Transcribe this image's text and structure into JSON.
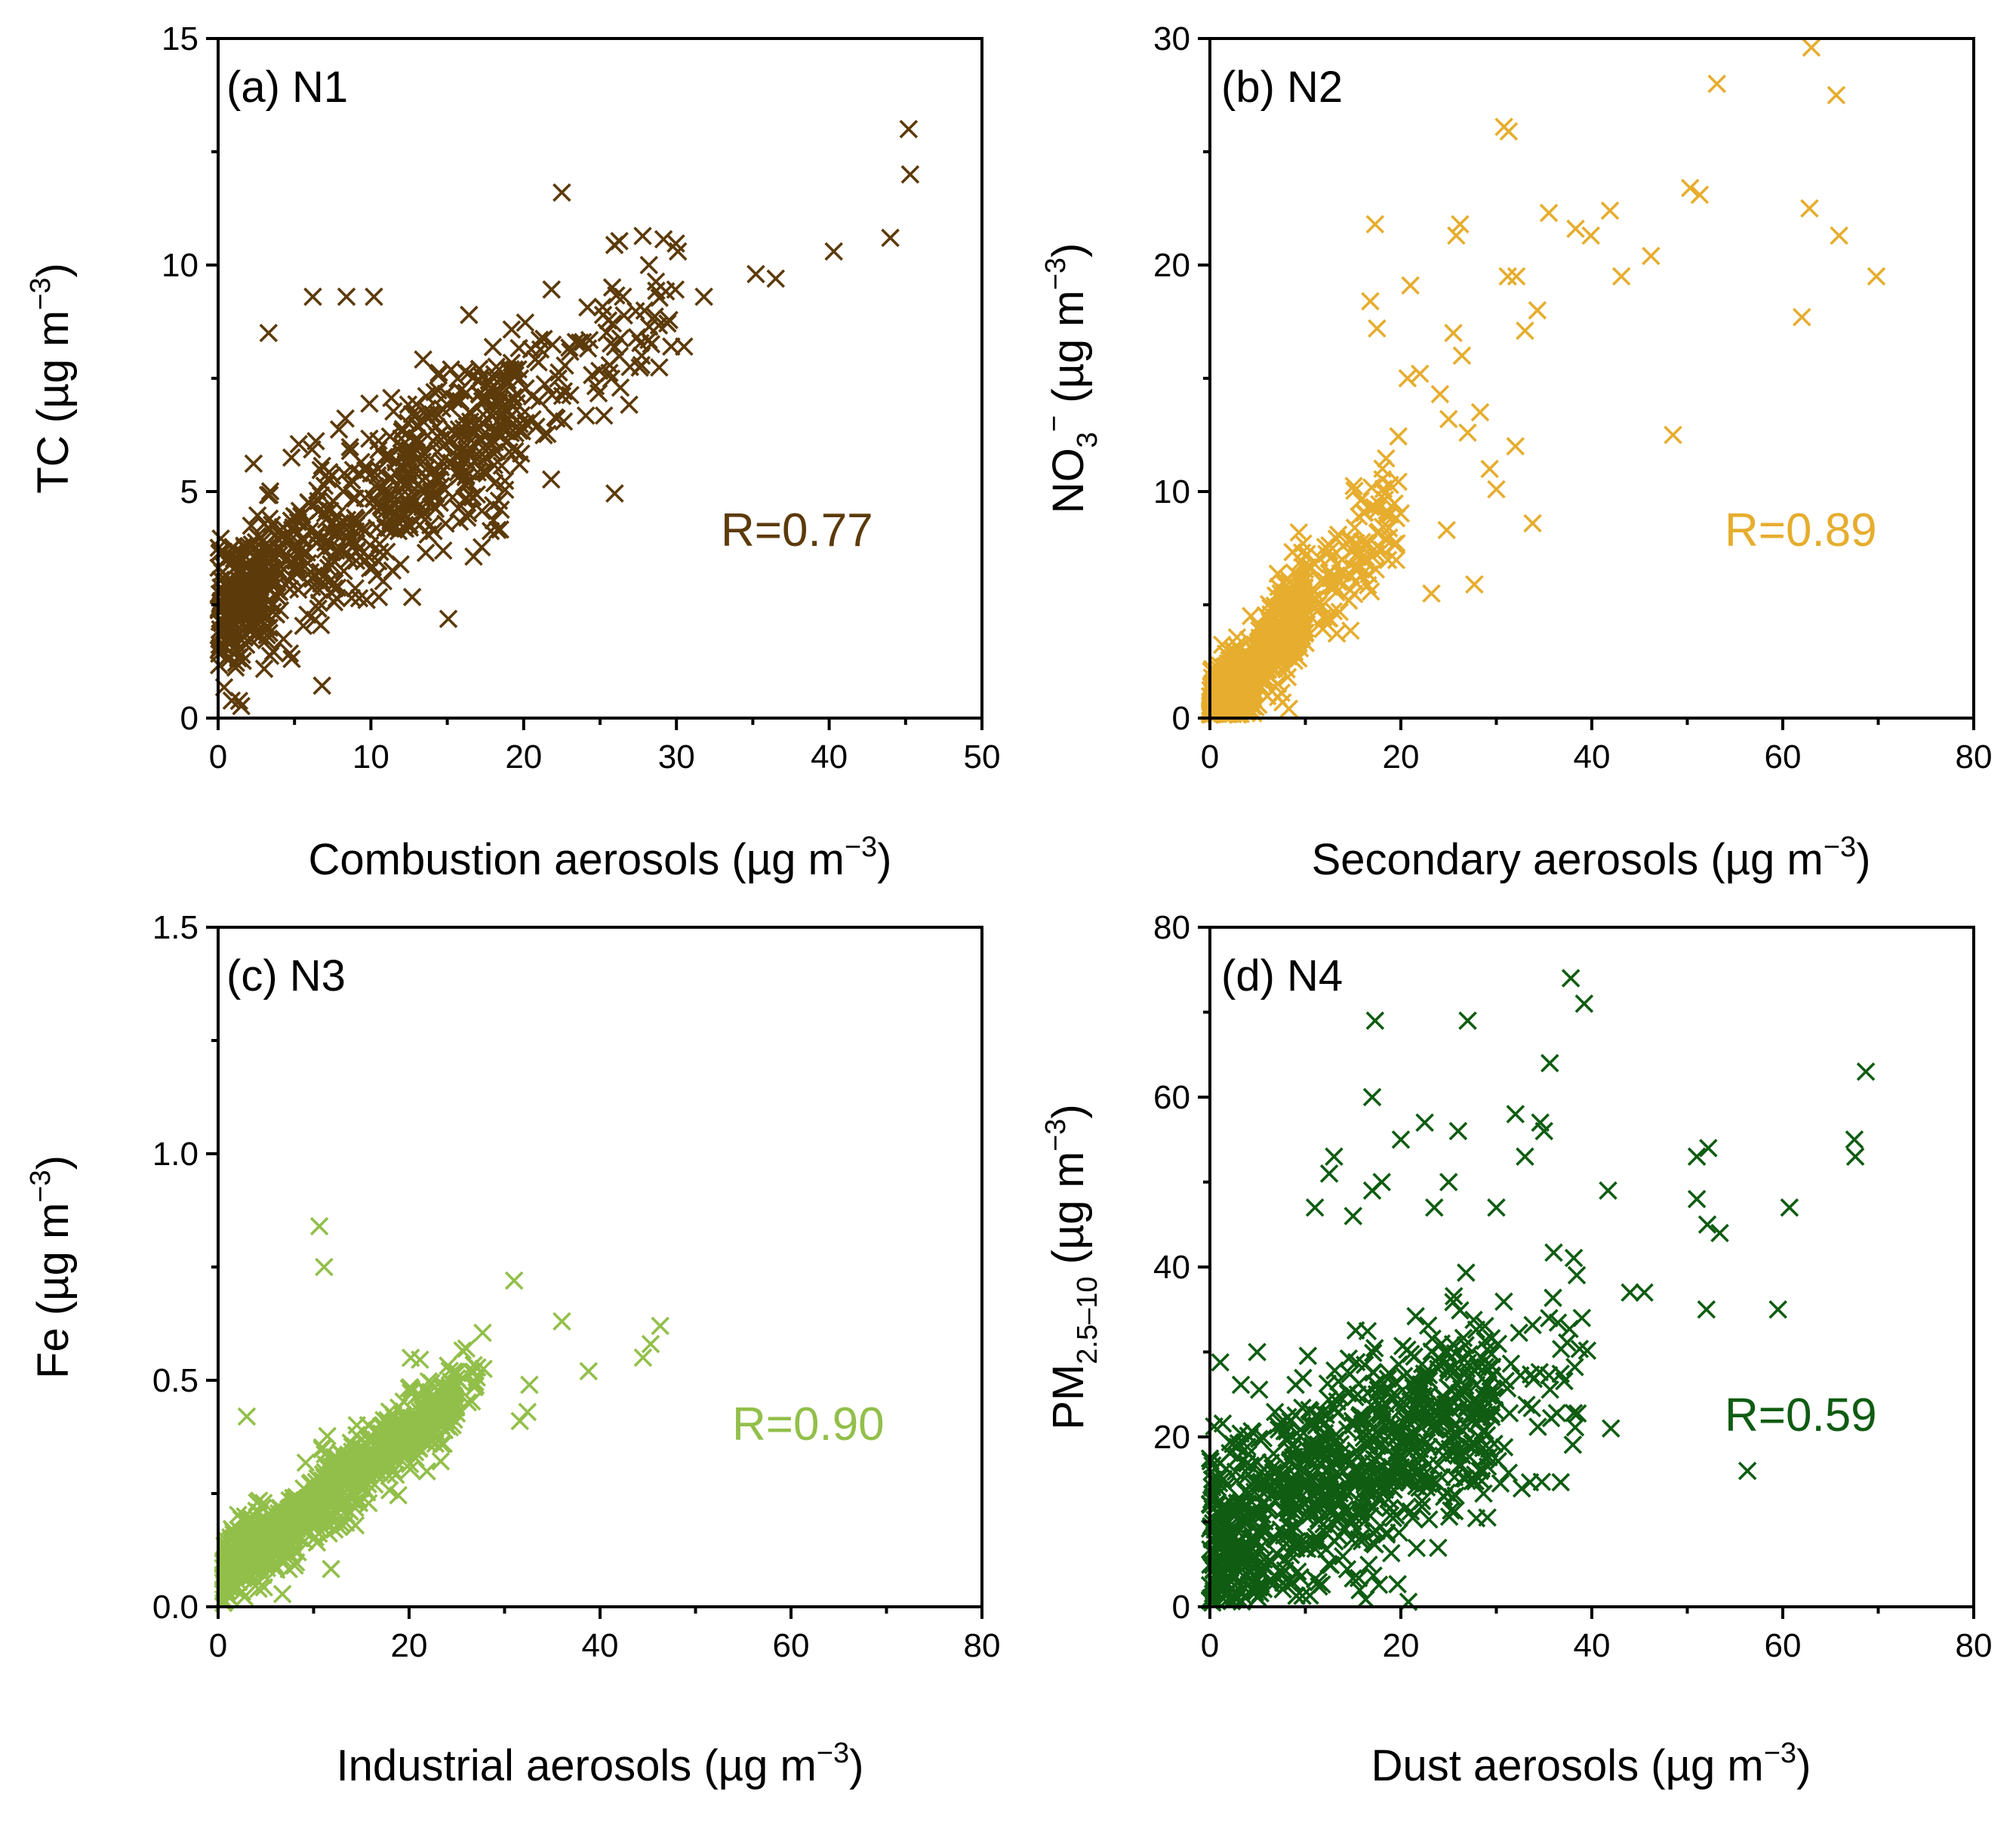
{
  "chart_data": [
    {
      "type": "scatter",
      "panel_label": "(a) N1",
      "xlabel": "Combustion aerosols (µg m",
      "xlabel_exp": "−3",
      "xlabel_end": ")",
      "ylabel": "TC (µg m",
      "ylabel_exp": "−3",
      "ylabel_end": ")",
      "xlim": [
        0,
        50
      ],
      "ylim": [
        0,
        15
      ],
      "xticks": [
        0,
        10,
        20,
        30,
        40,
        50
      ],
      "yticks": [
        0,
        5,
        10,
        15
      ],
      "xtick_labels": [
        "0",
        "10",
        "20",
        "30",
        "40",
        "50"
      ],
      "ytick_labels": [
        "0",
        "5",
        "10",
        "15"
      ],
      "color": "#5c3a0a",
      "r_text": "R=0.77",
      "outliers": [
        [
          45.2,
          13.0
        ],
        [
          45.3,
          12.0
        ],
        [
          44.0,
          10.6
        ],
        [
          40.3,
          10.3
        ],
        [
          36.5,
          9.7
        ],
        [
          35.2,
          9.8
        ],
        [
          31.8,
          9.3
        ],
        [
          30.5,
          8.2
        ],
        [
          30.1,
          10.3
        ],
        [
          28.2,
          10.0
        ],
        [
          22.5,
          11.6
        ],
        [
          18.5,
          4.6
        ],
        [
          3.3,
          8.5
        ],
        [
          6.2,
          9.3
        ],
        [
          8.4,
          9.3
        ],
        [
          10.2,
          9.3
        ],
        [
          26.5,
          9.3
        ],
        [
          25.2,
          8.9
        ]
      ],
      "clusters": [
        {
          "count": 520,
          "x": [
            0,
            20
          ],
          "slope": 0.22,
          "intercept": 2.4,
          "spread": 1.2
        },
        {
          "count": 180,
          "x": [
            12,
            30
          ],
          "slope": 0.22,
          "intercept": 2.6,
          "spread": 1.3
        },
        {
          "count": 140,
          "x": [
            0,
            4
          ],
          "slope": 0.3,
          "intercept": 2.2,
          "spread": 0.8
        }
      ]
    },
    {
      "type": "scatter",
      "panel_label": "(b) N2",
      "xlabel": "Secondary aerosols (µg m",
      "xlabel_exp": "−3",
      "xlabel_end": ")",
      "ylabel": "NO",
      "ylabel_sub": "3",
      "ylabel_sup": "−",
      "ylabel_rest": " (µg m",
      "ylabel_exp": "−3",
      "ylabel_end": ")",
      "xlim": [
        0,
        80
      ],
      "ylim": [
        0,
        30
      ],
      "xticks": [
        0,
        20,
        40,
        60,
        80
      ],
      "yticks": [
        0,
        10,
        20,
        30
      ],
      "xtick_labels": [
        "0",
        "20",
        "40",
        "60",
        "80"
      ],
      "ytick_labels": [
        "0",
        "10",
        "20",
        "30"
      ],
      "color": "#e6ad2e",
      "r_text": "R=0.89",
      "outliers": [
        [
          63.0,
          29.6
        ],
        [
          65.6,
          27.5
        ],
        [
          53.1,
          28.0
        ],
        [
          30.8,
          26.1
        ],
        [
          31.3,
          25.9
        ],
        [
          50.3,
          23.4
        ],
        [
          51.3,
          23.1
        ],
        [
          62.8,
          22.5
        ],
        [
          65.9,
          21.3
        ],
        [
          69.8,
          19.5
        ],
        [
          62.0,
          17.7
        ],
        [
          48.5,
          12.5
        ],
        [
          41.9,
          22.4
        ],
        [
          38.3,
          21.6
        ],
        [
          39.9,
          21.3
        ],
        [
          46.2,
          20.4
        ],
        [
          43.1,
          19.5
        ],
        [
          35.5,
          22.3
        ],
        [
          32.1,
          19.5
        ],
        [
          31.2,
          19.5
        ],
        [
          34.3,
          18.0
        ],
        [
          33.0,
          17.1
        ],
        [
          25.8,
          21.3
        ],
        [
          26.2,
          21.8
        ],
        [
          17.3,
          21.8
        ],
        [
          21.0,
          19.1
        ],
        [
          16.8,
          18.4
        ],
        [
          17.5,
          17.2
        ],
        [
          25.5,
          17.0
        ],
        [
          26.4,
          16.0
        ],
        [
          22.0,
          15.2
        ],
        [
          20.7,
          15.0
        ],
        [
          24.1,
          14.3
        ],
        [
          25.0,
          13.2
        ],
        [
          27.0,
          12.6
        ],
        [
          28.3,
          13.5
        ],
        [
          32.0,
          12.0
        ],
        [
          33.8,
          8.6
        ],
        [
          27.7,
          5.9
        ],
        [
          23.2,
          5.5
        ],
        [
          24.8,
          8.3
        ],
        [
          29.3,
          11.0
        ],
        [
          30.0,
          10.1
        ]
      ],
      "clusters": [
        {
          "count": 620,
          "x": [
            0,
            10
          ],
          "slope": 0.48,
          "intercept": 0.0,
          "spread": 1.2
        },
        {
          "count": 160,
          "x": [
            8,
            20
          ],
          "slope": 0.45,
          "intercept": 0.5,
          "spread": 1.8
        }
      ]
    },
    {
      "type": "scatter",
      "panel_label": "(c) N3",
      "xlabel": "Industrial aerosols (µg m",
      "xlabel_exp": "−3",
      "xlabel_end": ")",
      "ylabel": "Fe (µg m",
      "ylabel_exp": "−3",
      "ylabel_end": ")",
      "xlim": [
        0,
        80
      ],
      "ylim": [
        0,
        1.5
      ],
      "xticks": [
        0,
        20,
        40,
        60,
        80
      ],
      "yticks": [
        0.0,
        0.5,
        1.0,
        1.5
      ],
      "xtick_labels": [
        "0",
        "20",
        "40",
        "60",
        "80"
      ],
      "ytick_labels": [
        "0.0",
        "0.5",
        "1.0",
        "1.5"
      ],
      "color": "#92bf4a",
      "r_text": "R=0.90",
      "outliers": [
        [
          10.6,
          0.84
        ],
        [
          11.1,
          0.75
        ],
        [
          3.0,
          0.42
        ],
        [
          31.0,
          0.72
        ],
        [
          36.0,
          0.63
        ],
        [
          46.3,
          0.62
        ],
        [
          45.3,
          0.58
        ],
        [
          44.5,
          0.55
        ],
        [
          38.8,
          0.52
        ],
        [
          32.6,
          0.49
        ],
        [
          32.4,
          0.43
        ],
        [
          31.6,
          0.41
        ],
        [
          26.0,
          0.57
        ]
      ],
      "clusters": [
        {
          "count": 900,
          "x": [
            0.5,
            25
          ],
          "slope": 0.0155,
          "intercept": 0.07,
          "spread": 0.05
        },
        {
          "count": 120,
          "x": [
            10,
            28
          ],
          "slope": 0.016,
          "intercept": 0.08,
          "spread": 0.06
        }
      ]
    },
    {
      "type": "scatter",
      "panel_label": "(d) N4",
      "xlabel": "Dust aerosols (µg m",
      "xlabel_exp": "−3",
      "xlabel_end": ")",
      "ylabel": "PM",
      "ylabel_sub": "2.5–10",
      "ylabel_rest": " (µg m",
      "ylabel_exp": "−3",
      "ylabel_end": ")",
      "xlim": [
        0,
        80
      ],
      "ylim": [
        0,
        80
      ],
      "xticks": [
        0,
        20,
        40,
        60,
        80
      ],
      "yticks": [
        0,
        20,
        40,
        60,
        80
      ],
      "xtick_labels": [
        "0",
        "20",
        "40",
        "60",
        "80"
      ],
      "ytick_labels": [
        "0",
        "20",
        "40",
        "60",
        "80"
      ],
      "color": "#0f5c12",
      "r_text": "R=0.59",
      "outliers": [
        [
          37.8,
          74.0
        ],
        [
          39.2,
          71.0
        ],
        [
          17.3,
          69.0
        ],
        [
          27.0,
          69.0
        ],
        [
          35.6,
          64.0
        ],
        [
          68.7,
          63.0
        ],
        [
          17.0,
          60.0
        ],
        [
          32.0,
          58.0
        ],
        [
          34.6,
          57.0
        ],
        [
          35.0,
          56.0
        ],
        [
          26.0,
          56.0
        ],
        [
          67.5,
          55.0
        ],
        [
          67.6,
          53.0
        ],
        [
          52.2,
          54.0
        ],
        [
          51.0,
          53.0
        ],
        [
          51.0,
          48.0
        ],
        [
          52.1,
          45.0
        ],
        [
          53.4,
          44.0
        ],
        [
          60.7,
          47.0
        ],
        [
          41.7,
          49.0
        ],
        [
          59.5,
          35.0
        ],
        [
          52.0,
          35.0
        ],
        [
          56.3,
          16.0
        ],
        [
          44.0,
          37.0
        ],
        [
          45.5,
          37.0
        ],
        [
          42.0,
          21.0
        ],
        [
          13.0,
          53.0
        ],
        [
          20.0,
          55.0
        ],
        [
          22.5,
          57.0
        ],
        [
          12.5,
          51.0
        ],
        [
          17.0,
          49.0
        ],
        [
          18.0,
          50.0
        ],
        [
          30.0,
          47.0
        ],
        [
          33.0,
          53.0
        ],
        [
          11.0,
          47.0
        ],
        [
          15.0,
          46.0
        ],
        [
          23.5,
          47.0
        ],
        [
          25.0,
          50.0
        ]
      ],
      "clusters": [
        {
          "count": 700,
          "x": [
            0,
            30
          ],
          "slope": 0.55,
          "intercept": 8.0,
          "spread": 8.0
        },
        {
          "count": 200,
          "x": [
            8,
            40
          ],
          "slope": 0.6,
          "intercept": 6.0,
          "spread": 9.0
        },
        {
          "count": 80,
          "x": [
            0,
            6
          ],
          "slope": 0.8,
          "intercept": 4.0,
          "spread": 5.0
        }
      ]
    }
  ]
}
